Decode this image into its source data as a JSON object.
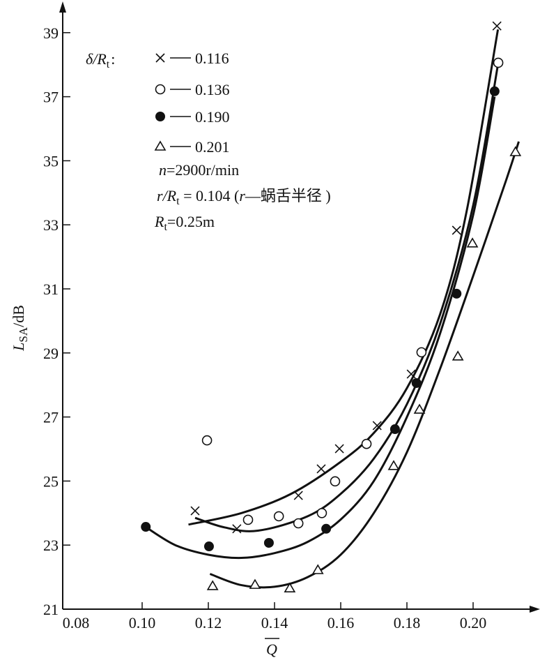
{
  "chart_data": {
    "type": "scatter",
    "title": "",
    "xlabel": "Q",
    "ylabel_main": "L",
    "ylabel_sub": "SA",
    "ylabel_unit": "/dB",
    "xlim": [
      0.08,
      0.215
    ],
    "ylim": [
      21,
      39.5
    ],
    "x_ticks": [
      "0.08",
      "0.10",
      "0.12",
      "0.14",
      "0.16",
      "0.18",
      "0.20"
    ],
    "y_ticks": [
      "21",
      "23",
      "25",
      "27",
      "29",
      "31",
      "33",
      "35",
      "37",
      "39"
    ],
    "grid": false,
    "legend_placement": "top-left",
    "legend_title": {
      "main": "δ/R",
      "sub": "t",
      "colon": ":"
    },
    "series": [
      {
        "name": "0.116",
        "marker": "cross",
        "points": [
          [
            0.116,
            24.07
          ],
          [
            0.1286,
            23.51
          ],
          [
            0.1472,
            24.55
          ],
          [
            0.1541,
            25.38
          ],
          [
            0.1596,
            26.01
          ],
          [
            0.171,
            26.73
          ],
          [
            0.1813,
            28.34
          ],
          [
            0.195,
            32.83
          ],
          [
            0.2072,
            39.21
          ]
        ],
        "fit": [
          [
            0.114,
            23.64
          ],
          [
            0.13,
            24.0
          ],
          [
            0.145,
            24.6
          ],
          [
            0.16,
            25.6
          ],
          [
            0.17,
            26.5
          ],
          [
            0.18,
            27.9
          ],
          [
            0.19,
            30.2
          ],
          [
            0.198,
            33.4
          ],
          [
            0.2075,
            39.1
          ]
        ]
      },
      {
        "name": "0.136",
        "marker": "open-circle",
        "points": [
          [
            0.1196,
            26.27
          ],
          [
            0.132,
            23.79
          ],
          [
            0.1413,
            23.9
          ],
          [
            0.1472,
            23.68
          ],
          [
            0.1543,
            24.0
          ],
          [
            0.1583,
            24.99
          ],
          [
            0.1678,
            26.16
          ],
          [
            0.1844,
            29.02
          ],
          [
            0.2076,
            38.06
          ]
        ],
        "fit": [
          [
            0.116,
            23.85
          ],
          [
            0.125,
            23.55
          ],
          [
            0.135,
            23.45
          ],
          [
            0.15,
            23.9
          ],
          [
            0.16,
            24.6
          ],
          [
            0.17,
            25.7
          ],
          [
            0.18,
            27.4
          ],
          [
            0.19,
            29.9
          ],
          [
            0.2,
            33.6
          ],
          [
            0.2075,
            38.0
          ]
        ]
      },
      {
        "name": "0.190",
        "marker": "filled-circle",
        "points": [
          [
            0.1011,
            23.57
          ],
          [
            0.1202,
            22.96
          ],
          [
            0.1383,
            23.07
          ],
          [
            0.1556,
            23.51
          ],
          [
            0.1764,
            26.62
          ],
          [
            0.1829,
            28.06
          ],
          [
            0.195,
            30.85
          ],
          [
            0.2065,
            37.17
          ]
        ],
        "fit": [
          [
            0.101,
            23.57
          ],
          [
            0.11,
            23.0
          ],
          [
            0.12,
            22.7
          ],
          [
            0.13,
            22.6
          ],
          [
            0.14,
            22.75
          ],
          [
            0.15,
            23.1
          ],
          [
            0.16,
            23.8
          ],
          [
            0.17,
            25.0
          ],
          [
            0.18,
            27.0
          ],
          [
            0.19,
            29.6
          ],
          [
            0.2,
            33.3
          ],
          [
            0.2065,
            37.0
          ]
        ]
      },
      {
        "name": "0.201",
        "marker": "open-triangle",
        "points": [
          [
            0.1213,
            21.72
          ],
          [
            0.1341,
            21.76
          ],
          [
            0.1446,
            21.65
          ],
          [
            0.1531,
            22.22
          ],
          [
            0.176,
            25.47
          ],
          [
            0.1838,
            27.23
          ],
          [
            0.1954,
            28.89
          ],
          [
            0.1998,
            32.42
          ],
          [
            0.2128,
            35.27
          ]
        ],
        "fit": [
          [
            0.1205,
            22.1
          ],
          [
            0.13,
            21.75
          ],
          [
            0.14,
            21.7
          ],
          [
            0.15,
            22.0
          ],
          [
            0.16,
            22.7
          ],
          [
            0.17,
            24.0
          ],
          [
            0.18,
            25.9
          ],
          [
            0.19,
            28.5
          ],
          [
            0.2,
            31.4
          ],
          [
            0.21,
            34.4
          ],
          [
            0.2138,
            35.6
          ]
        ]
      }
    ],
    "annotations": {
      "speed": {
        "var": "n",
        "rest": "=2900r/min"
      },
      "ratio": {
        "var": "r",
        "slash": "/R",
        "sub": "t",
        "value": " = 0.104  (",
        "var2": "r",
        "desc": "—蜗舌半径 )"
      },
      "radius": {
        "var": "R",
        "sub": "t",
        "rest": "=0.25m"
      }
    }
  }
}
